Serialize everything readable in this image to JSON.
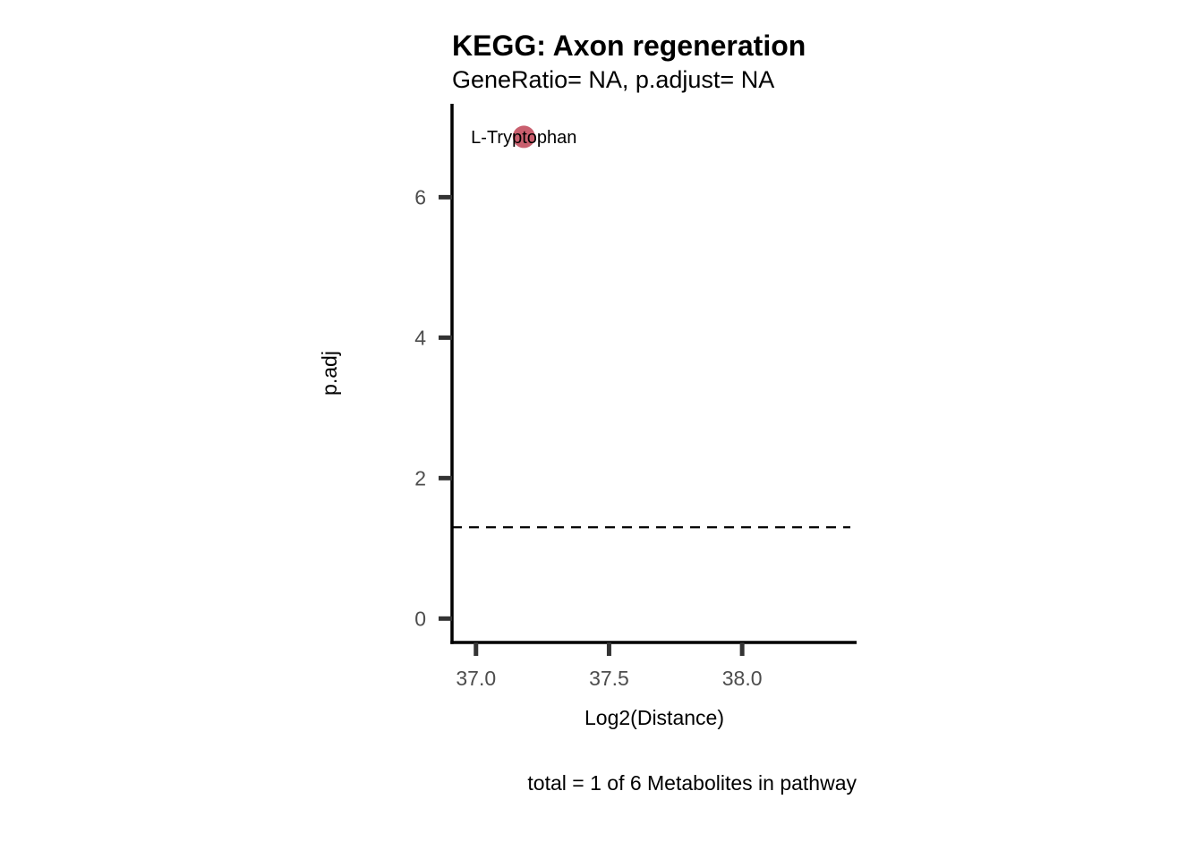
{
  "chart_data": {
    "type": "scatter",
    "title": "KEGG: Axon regeneration",
    "subtitle": "GeneRatio= NA, p.adjust= NA",
    "xlabel": "Log2(Distance)",
    "ylabel": "p.adj",
    "caption": "total = 1 of 6 Metabolites in pathway",
    "xlim": [
      36.91,
      38.43
    ],
    "ylim": [
      -0.34,
      7.33
    ],
    "xticks": [
      {
        "value": 37.0,
        "label": "37.0"
      },
      {
        "value": 37.5,
        "label": "37.5"
      },
      {
        "value": 38.0,
        "label": "38.0"
      }
    ],
    "yticks": [
      {
        "value": 0,
        "label": "0"
      },
      {
        "value": 2,
        "label": "2"
      },
      {
        "value": 4,
        "label": "4"
      },
      {
        "value": 6,
        "label": "6"
      }
    ],
    "points": [
      {
        "x": 37.18,
        "y": 6.86,
        "label": "L-Tryptophan",
        "color": "#c95f6e"
      }
    ],
    "reference_line": {
      "y": 1.3,
      "style": "dashed",
      "color": "#000000"
    },
    "grid": false
  }
}
